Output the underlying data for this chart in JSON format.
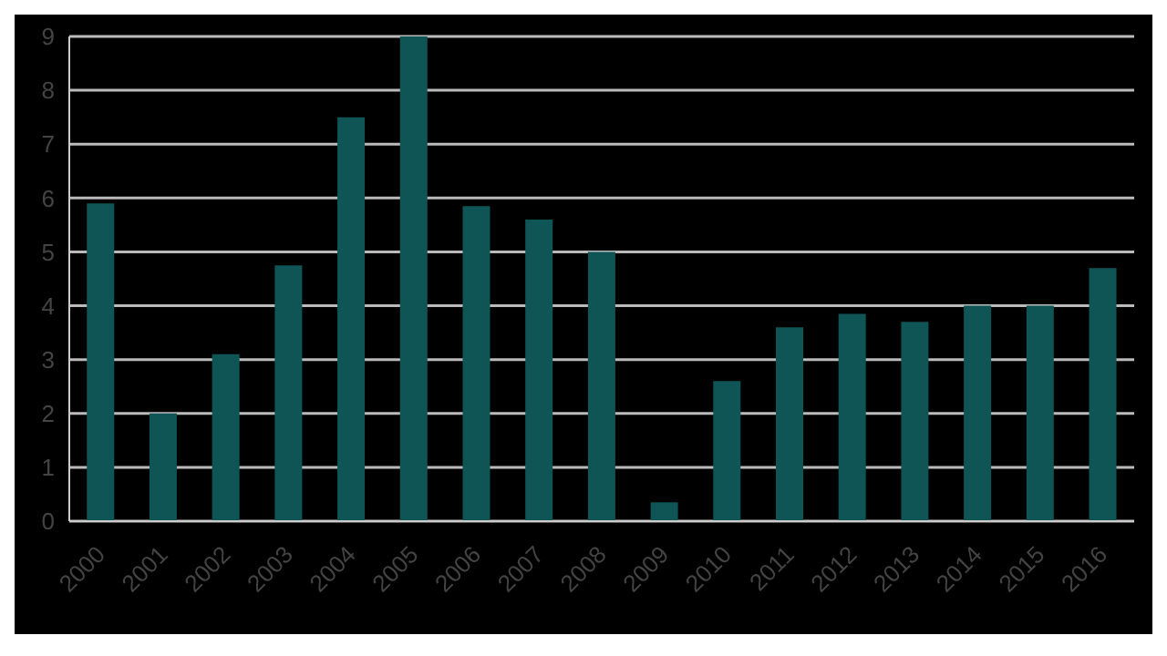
{
  "chart_data": {
    "type": "bar",
    "categories": [
      "2000",
      "2001",
      "2002",
      "2003",
      "2004",
      "2005",
      "2006",
      "2007",
      "2008",
      "2009",
      "2010",
      "2011",
      "2012",
      "2013",
      "2014",
      "2015",
      "2016"
    ],
    "values": [
      5.9,
      2.0,
      3.1,
      4.75,
      7.5,
      9.0,
      5.85,
      5.6,
      5.0,
      0.35,
      2.6,
      3.6,
      3.85,
      3.7,
      4.0,
      4.0,
      4.7
    ],
    "color": "#0f5555",
    "ylim": [
      0,
      9
    ],
    "yticks": [
      0,
      1,
      2,
      3,
      4,
      5,
      6,
      7,
      8,
      9
    ],
    "grid": "y"
  }
}
